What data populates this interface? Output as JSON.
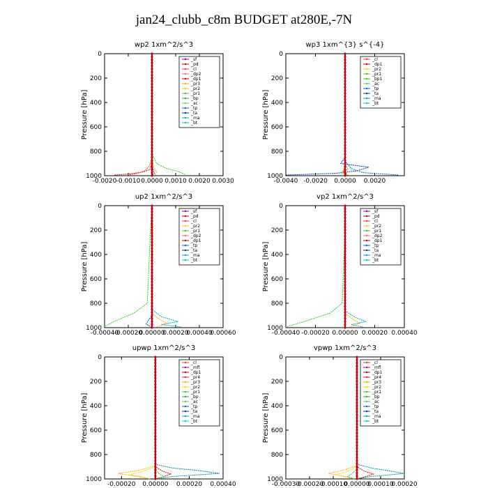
{
  "title": "jan24_clubb_c8m  BUDGET at280E,-7N",
  "chart_data": [
    {
      "type": "line",
      "title": "wp2   1xm^2/s^3",
      "ylabel": "Pressure [hPa]",
      "xlim": [
        -0.002,
        0.003
      ],
      "ylim": [
        1000,
        0
      ],
      "xticks": [
        "-0.0020",
        "-0.0010",
        "0.0000",
        "0.0010",
        "0.0020",
        "0.0030"
      ],
      "xtick_values": [
        -0.002,
        -0.001,
        0.0,
        0.001,
        0.002,
        0.003
      ],
      "yticks": [
        0,
        200,
        400,
        600,
        800,
        1000
      ],
      "legend": [
        "_sf",
        "_pd",
        "_cl",
        "_dp2",
        "_dp1",
        "_pr3",
        "_pr2",
        "_pr1",
        "_bp",
        "_ac",
        "_tp",
        "_ta",
        "_ma",
        "_bt"
      ],
      "series": [
        {
          "name": "_pd",
          "color": "#cc0000",
          "x": [
            0,
            0,
            0,
            -0.0001,
            -0.0004,
            -0.0009,
            -0.0016
          ],
          "y": [
            0,
            800,
            900,
            950,
            970,
            985,
            995
          ]
        },
        {
          "name": "_dp1",
          "color": "#ff3333",
          "x": [
            0,
            0,
            -0.0001,
            -0.0003,
            -0.0006,
            -0.001
          ],
          "y": [
            0,
            850,
            920,
            960,
            980,
            995
          ]
        },
        {
          "name": "_bp",
          "color": "#33cc33",
          "x": [
            0,
            0,
            0.0002,
            0.0006,
            0.0011,
            0.0014
          ],
          "y": [
            0,
            820,
            900,
            940,
            965,
            990
          ]
        },
        {
          "name": "_pr3",
          "color": "#ffaa00",
          "x": [
            0,
            0,
            0.0001,
            0.0002,
            0.0001
          ],
          "y": [
            0,
            880,
            940,
            970,
            995
          ]
        },
        {
          "name": "_tp",
          "color": "#0033cc",
          "x": [
            0,
            0,
            5e-05,
            0.0001,
            0
          ],
          "y": [
            0,
            900,
            950,
            980,
            1000
          ]
        },
        {
          "name": "_bt",
          "color": "#00cccc",
          "x": [
            0,
            0,
            0
          ],
          "y": [
            0,
            500,
            1000
          ]
        },
        {
          "name": "_sf",
          "color": "#8800aa",
          "x": [
            0,
            0,
            0
          ],
          "y": [
            0,
            500,
            1000
          ]
        }
      ]
    },
    {
      "type": "line",
      "title": "wp3   1xm^{3} s^{-4}",
      "ylabel": "Pressure [hPa]",
      "xlim": [
        -0.004,
        0.004
      ],
      "ylim": [
        1000,
        0
      ],
      "xticks": [
        "-0.0040",
        "-0.0020",
        "0.0000",
        "0.0020"
      ],
      "xtick_values": [
        -0.004,
        -0.002,
        0.0,
        0.002
      ],
      "yticks": [
        0,
        200,
        400,
        600,
        800,
        1000
      ],
      "legend": [
        "_cl",
        "_dp1",
        "_pr2",
        "_pr1",
        "_bp1",
        "_ac",
        "_tp",
        "_ta",
        "_ma",
        "_bt"
      ],
      "series": [
        {
          "name": "_ta",
          "color": "#0033cc",
          "x": [
            0,
            0,
            -0.0003,
            0.0016,
            0.0008,
            -0.0006,
            -0.004
          ],
          "y": [
            0,
            850,
            900,
            930,
            960,
            980,
            995
          ]
        },
        {
          "name": "_tp",
          "color": "#0066dd",
          "x": [
            0,
            0,
            0.0004,
            0.0012,
            0.0036
          ],
          "y": [
            0,
            880,
            940,
            975,
            995
          ]
        },
        {
          "name": "_ac",
          "color": "#33cc33",
          "x": [
            0,
            0,
            0.0002,
            -0.0003,
            0.0002
          ],
          "y": [
            0,
            900,
            950,
            975,
            995
          ]
        },
        {
          "name": "_pr1",
          "color": "#ffaa00",
          "x": [
            0,
            0,
            -0.0002,
            0.0001
          ],
          "y": [
            0,
            930,
            970,
            995
          ]
        },
        {
          "name": "_dp1",
          "color": "#cc0000",
          "x": [
            0,
            0,
            -0.0001,
            0.0001,
            0
          ],
          "y": [
            0,
            920,
            960,
            980,
            1000
          ]
        },
        {
          "name": "_cl",
          "color": "#ff3333",
          "x": [
            0,
            0,
            0
          ],
          "y": [
            0,
            500,
            1000
          ]
        }
      ]
    },
    {
      "type": "line",
      "title": "up2   1xm^2/s^3",
      "ylabel": "Pressure [hPa]",
      "xlim": [
        -0.0004,
        0.0006
      ],
      "ylim": [
        1000,
        0
      ],
      "xticks": [
        "-0.00040",
        "-0.00020",
        "0.00000",
        "0.00020",
        "0.00040",
        "0.00060"
      ],
      "xtick_values": [
        -0.0004,
        -0.0002,
        0.0,
        0.0002,
        0.0004,
        0.0006
      ],
      "yticks": [
        0,
        200,
        400,
        600,
        800,
        1000
      ],
      "legend": [
        "_sf",
        "_pd",
        "_cl",
        "_pr2",
        "_pr1",
        "_dp2",
        "_dp1",
        "_tp",
        "_ta",
        "_ma",
        "_bt"
      ],
      "series": [
        {
          "name": "_pr1",
          "color": "#33cc33",
          "x": [
            0,
            -1e-05,
            -4e-05,
            -0.00015,
            -0.0003,
            -0.0004
          ],
          "y": [
            0,
            150,
            800,
            880,
            940,
            990
          ]
        },
        {
          "name": "_tp",
          "color": "#00aacc",
          "x": [
            0,
            0,
            8e-05,
            0.00022,
            8e-05,
            0.00025
          ],
          "y": [
            0,
            850,
            910,
            950,
            975,
            995
          ]
        },
        {
          "name": "_dp2",
          "color": "#ffaa00",
          "x": [
            0,
            0,
            6e-05,
            0.00013,
            4e-05
          ],
          "y": [
            0,
            880,
            930,
            965,
            995
          ]
        },
        {
          "name": "_ta",
          "color": "#0033cc",
          "x": [
            0,
            0,
            -3e-05,
            -5e-05,
            0
          ],
          "y": [
            0,
            900,
            940,
            970,
            1000
          ]
        },
        {
          "name": "_pd",
          "color": "#cc0000",
          "x": [
            0,
            0,
            0
          ],
          "y": [
            0,
            500,
            1000
          ]
        },
        {
          "name": "_sf",
          "color": "#8800aa",
          "x": [
            0,
            0,
            0
          ],
          "y": [
            0,
            500,
            1000
          ]
        }
      ]
    },
    {
      "type": "line",
      "title": "vp2   1xm^2/s^3",
      "ylabel": "Pressure [hPa]",
      "xlim": [
        -0.0004,
        0.0004
      ],
      "ylim": [
        1000,
        0
      ],
      "xticks": [
        "-0.00040",
        "-0.00020",
        "0.00000",
        "0.00020",
        "0.00040"
      ],
      "xtick_values": [
        -0.0004,
        -0.0002,
        0.0,
        0.0002,
        0.0004
      ],
      "yticks": [
        0,
        200,
        400,
        600,
        800,
        1000
      ],
      "legend": [
        "_sf",
        "_pd",
        "_cl",
        "_pr2",
        "_pr1",
        "_dp2",
        "_dp1",
        "_tp",
        "_ta",
        "_ma",
        "_bt"
      ],
      "series": [
        {
          "name": "_pr1",
          "color": "#33cc33",
          "x": [
            0,
            0,
            -2e-05,
            -0.0001,
            -0.00025,
            -0.0004
          ],
          "y": [
            0,
            200,
            800,
            880,
            940,
            995
          ]
        },
        {
          "name": "_tp",
          "color": "#00aacc",
          "x": [
            0,
            0,
            6e-05,
            0.00014,
            4e-05,
            0.00012
          ],
          "y": [
            0,
            860,
            910,
            950,
            975,
            995
          ]
        },
        {
          "name": "_dp2",
          "color": "#ffaa00",
          "x": [
            0,
            0,
            5e-05,
            0.0001,
            3e-05
          ],
          "y": [
            0,
            880,
            930,
            965,
            995
          ]
        },
        {
          "name": "_pd",
          "color": "#cc0000",
          "x": [
            0,
            0,
            0
          ],
          "y": [
            0,
            500,
            1000
          ]
        },
        {
          "name": "_sf",
          "color": "#8800aa",
          "x": [
            0,
            0,
            0
          ],
          "y": [
            0,
            500,
            1000
          ]
        }
      ]
    },
    {
      "type": "line",
      "title": "upwp   1xm^2/s^3",
      "ylabel": "Pressure [hPa]",
      "xlim": [
        -0.0003,
        0.0004
      ],
      "ylim": [
        1000,
        0
      ],
      "xticks": [
        "-0.00020",
        "0.00000",
        "0.00020",
        "0.00040"
      ],
      "xtick_values": [
        -0.0002,
        0.0,
        0.0002,
        0.0004
      ],
      "yticks": [
        0,
        200,
        400,
        600,
        800,
        1000
      ],
      "legend": [
        "_cl",
        "_mfl",
        "_dp1",
        "_pr4",
        "_pr3",
        "_pr2",
        "_pr1",
        "_bp",
        "_ac",
        "_tp",
        "_ta",
        "_ma",
        "_bt"
      ],
      "series": [
        {
          "name": "_ta",
          "color": "#0088aa",
          "x": [
            0,
            0,
            0.0001,
            0.00025,
            0.00038,
            0.0001,
            0
          ],
          "y": [
            0,
            880,
            910,
            930,
            955,
            980,
            1000
          ]
        },
        {
          "name": "_pr2",
          "color": "#ffaa00",
          "x": [
            0,
            0,
            -0.0001,
            -0.00022,
            -0.0001,
            -3e-05
          ],
          "y": [
            0,
            890,
            930,
            955,
            980,
            1000
          ]
        },
        {
          "name": "_pr1",
          "color": "#ffcc00",
          "x": [
            0,
            0,
            -8e-05,
            -0.00015,
            -5e-05
          ],
          "y": [
            0,
            900,
            940,
            965,
            995
          ]
        },
        {
          "name": "_dp1",
          "color": "#cc0000",
          "x": [
            0,
            0,
            4e-05,
            9e-05,
            4e-05,
            0
          ],
          "y": [
            0,
            900,
            935,
            960,
            985,
            1000
          ]
        },
        {
          "name": "_bp",
          "color": "#33cc33",
          "x": [
            0,
            0,
            2e-05,
            5e-05,
            2e-05
          ],
          "y": [
            0,
            920,
            955,
            980,
            1000
          ]
        },
        {
          "name": "_cl",
          "color": "#8800aa",
          "x": [
            0,
            0,
            0
          ],
          "y": [
            0,
            500,
            1000
          ]
        }
      ]
    },
    {
      "type": "line",
      "title": "vpwp   1xm^2/s^3",
      "ylabel": "Pressure [hPa]",
      "xlim": [
        -0.0003,
        0.0002
      ],
      "ylim": [
        1000,
        0
      ],
      "xticks": [
        "-0.00030",
        "-0.00020",
        "-0.00010",
        "0.00000",
        "0.00010",
        "0.00020"
      ],
      "xtick_values": [
        -0.0003,
        -0.0002,
        -0.0001,
        0.0,
        0.0001,
        0.0002
      ],
      "yticks": [
        0,
        200,
        400,
        600,
        800,
        1000
      ],
      "legend": [
        "_cl",
        "_mfl",
        "_dp1",
        "_pr4",
        "_pr3",
        "_pr2",
        "_pr1",
        "_bp",
        "_ac",
        "_tp",
        "_ta",
        "_ma",
        "_bt"
      ],
      "series": [
        {
          "name": "_ta",
          "color": "#0088aa",
          "x": [
            0,
            0,
            6e-05,
            0.00014,
            0.0002,
            6e-05,
            0
          ],
          "y": [
            0,
            880,
            910,
            935,
            955,
            980,
            1000
          ]
        },
        {
          "name": "_pr2",
          "color": "#ffaa00",
          "x": [
            0,
            0,
            -6e-05,
            -0.00012,
            -5e-05,
            -1e-05
          ],
          "y": [
            0,
            890,
            930,
            955,
            980,
            1000
          ]
        },
        {
          "name": "_pr1",
          "color": "#ffcc00",
          "x": [
            0,
            0,
            -4e-05,
            -9e-05,
            -3e-05
          ],
          "y": [
            0,
            900,
            940,
            965,
            995
          ]
        },
        {
          "name": "_dp1",
          "color": "#cc0000",
          "x": [
            0,
            0,
            3e-05,
            7e-05,
            3e-05,
            0
          ],
          "y": [
            0,
            900,
            935,
            960,
            985,
            1000
          ]
        },
        {
          "name": "_bp",
          "color": "#33cc33",
          "x": [
            0,
            0,
            -2e-05,
            -4e-05,
            -1e-05
          ],
          "y": [
            0,
            920,
            955,
            980,
            1000
          ]
        },
        {
          "name": "_cl",
          "color": "#8800aa",
          "x": [
            0,
            0,
            0
          ],
          "y": [
            0,
            500,
            1000
          ]
        }
      ]
    }
  ]
}
